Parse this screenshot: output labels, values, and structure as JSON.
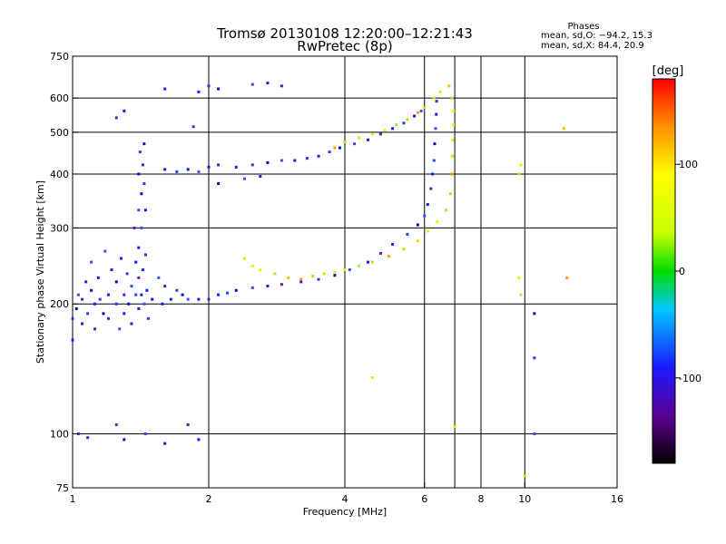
{
  "chart_data": {
    "type": "scatter",
    "title": "Tromsø 20130108 12:20:00–12:21:43",
    "subtitle": "RwPretec (8p)",
    "xlabel": "Frequency [MHz]",
    "ylabel": "Stationary phase Virtual Height [km]",
    "x_scale": "log",
    "y_scale": "log",
    "xlim": [
      1,
      16
    ],
    "ylim": [
      75,
      750
    ],
    "xticks": [
      1,
      2,
      4,
      6,
      8,
      10,
      16
    ],
    "xtick_labels": [
      "1",
      "2",
      "4",
      "6",
      "8",
      "10",
      "16"
    ],
    "yticks": [
      75,
      100,
      200,
      300,
      400,
      500,
      600,
      750
    ],
    "ytick_labels": [
      "75",
      "100",
      "200",
      "300",
      "400",
      "500",
      "600",
      "750"
    ],
    "x_gridlines": [
      2,
      4,
      6,
      7,
      8,
      10,
      16
    ],
    "y_gridlines": [
      100,
      200,
      300,
      400,
      500,
      600,
      750
    ],
    "grid": true,
    "stats": {
      "heading": "Phases",
      "line_o": "mean, sd,O: −94.2, 15.3",
      "line_x": "mean, sd,X:  84.4, 20.9"
    },
    "colorbar": {
      "label": "[deg]",
      "range": [
        -180,
        180
      ],
      "ticks": [
        100,
        0,
        -100
      ],
      "tick_labels": [
        "100",
        "0",
        "-100"
      ]
    },
    "series": [
      {
        "mode": "O",
        "points": [
          [
            1.0,
            165
          ],
          [
            1.0,
            185
          ],
          [
            1.02,
            195
          ],
          [
            1.03,
            210
          ],
          [
            1.05,
            180
          ],
          [
            1.05,
            205
          ],
          [
            1.07,
            225
          ],
          [
            1.08,
            190
          ],
          [
            1.1,
            215
          ],
          [
            1.1,
            250
          ],
          [
            1.12,
            200
          ],
          [
            1.12,
            175
          ],
          [
            1.14,
            230
          ],
          [
            1.15,
            205
          ],
          [
            1.17,
            190
          ],
          [
            1.18,
            265
          ],
          [
            1.2,
            210
          ],
          [
            1.2,
            185
          ],
          [
            1.22,
            240
          ],
          [
            1.25,
            200
          ],
          [
            1.25,
            225
          ],
          [
            1.27,
            175
          ],
          [
            1.28,
            255
          ],
          [
            1.3,
            210
          ],
          [
            1.3,
            190
          ],
          [
            1.32,
            235
          ],
          [
            1.33,
            200
          ],
          [
            1.35,
            220
          ],
          [
            1.35,
            180
          ],
          [
            1.37,
            300
          ],
          [
            1.38,
            250
          ],
          [
            1.38,
            210
          ],
          [
            1.4,
            400
          ],
          [
            1.4,
            330
          ],
          [
            1.4,
            270
          ],
          [
            1.4,
            230
          ],
          [
            1.4,
            195
          ],
          [
            1.41,
            450
          ],
          [
            1.42,
            360
          ],
          [
            1.42,
            300
          ],
          [
            1.42,
            210
          ],
          [
            1.43,
            420
          ],
          [
            1.43,
            240
          ],
          [
            1.44,
            380
          ],
          [
            1.44,
            470
          ],
          [
            1.44,
            200
          ],
          [
            1.45,
            330
          ],
          [
            1.45,
            260
          ],
          [
            1.46,
            215
          ],
          [
            1.47,
            185
          ],
          [
            1.5,
            205
          ],
          [
            1.55,
            230
          ],
          [
            1.58,
            200
          ],
          [
            1.6,
            220
          ],
          [
            1.65,
            205
          ],
          [
            1.7,
            215
          ],
          [
            1.75,
            210
          ],
          [
            1.8,
            205
          ],
          [
            1.9,
            205
          ],
          [
            2.0,
            205
          ],
          [
            2.1,
            210
          ],
          [
            2.2,
            212
          ],
          [
            2.3,
            215
          ],
          [
            2.5,
            218
          ],
          [
            2.7,
            220
          ],
          [
            2.9,
            222
          ],
          [
            3.2,
            225
          ],
          [
            3.5,
            228
          ],
          [
            3.8,
            233
          ],
          [
            4.1,
            240
          ],
          [
            4.5,
            250
          ],
          [
            4.8,
            262
          ],
          [
            5.1,
            275
          ],
          [
            5.5,
            290
          ],
          [
            5.8,
            305
          ],
          [
            6.0,
            320
          ],
          [
            6.1,
            340
          ],
          [
            6.2,
            370
          ],
          [
            6.25,
            400
          ],
          [
            6.3,
            430
          ],
          [
            6.32,
            470
          ],
          [
            6.35,
            510
          ],
          [
            6.37,
            550
          ],
          [
            6.38,
            590
          ],
          [
            1.6,
            410
          ],
          [
            1.7,
            405
          ],
          [
            1.8,
            410
          ],
          [
            1.9,
            405
          ],
          [
            2.0,
            415
          ],
          [
            2.1,
            420
          ],
          [
            2.3,
            415
          ],
          [
            2.5,
            420
          ],
          [
            2.7,
            425
          ],
          [
            2.9,
            430
          ],
          [
            3.1,
            430
          ],
          [
            3.3,
            435
          ],
          [
            3.5,
            440
          ],
          [
            3.7,
            450
          ],
          [
            3.9,
            460
          ],
          [
            4.2,
            470
          ],
          [
            4.5,
            480
          ],
          [
            4.8,
            495
          ],
          [
            5.1,
            510
          ],
          [
            5.4,
            525
          ],
          [
            5.7,
            545
          ],
          [
            5.9,
            560
          ],
          [
            1.3,
            560
          ],
          [
            1.25,
            540
          ],
          [
            1.9,
            620
          ],
          [
            2.0,
            640
          ],
          [
            2.1,
            630
          ],
          [
            2.5,
            645
          ],
          [
            2.7,
            650
          ],
          [
            2.9,
            640
          ],
          [
            1.6,
            630
          ],
          [
            1.85,
            515
          ],
          [
            2.1,
            380
          ],
          [
            2.4,
            390
          ],
          [
            2.6,
            395
          ],
          [
            1.03,
            100
          ],
          [
            1.08,
            98
          ],
          [
            1.25,
            105
          ],
          [
            1.3,
            97
          ],
          [
            1.45,
            100
          ],
          [
            1.6,
            95
          ],
          [
            1.8,
            105
          ],
          [
            1.9,
            97
          ],
          [
            10.5,
            150
          ],
          [
            10.5,
            190
          ],
          [
            10.5,
            100
          ]
        ]
      },
      {
        "mode": "X",
        "points": [
          [
            2.4,
            255
          ],
          [
            2.5,
            245
          ],
          [
            2.6,
            240
          ],
          [
            2.8,
            235
          ],
          [
            3.0,
            230
          ],
          [
            3.2,
            228
          ],
          [
            3.4,
            232
          ],
          [
            3.6,
            235
          ],
          [
            3.8,
            237
          ],
          [
            4.0,
            240
          ],
          [
            4.3,
            245
          ],
          [
            4.6,
            250
          ],
          [
            5.0,
            258
          ],
          [
            5.4,
            268
          ],
          [
            5.8,
            280
          ],
          [
            6.1,
            295
          ],
          [
            6.4,
            310
          ],
          [
            6.7,
            330
          ],
          [
            6.85,
            360
          ],
          [
            6.9,
            400
          ],
          [
            6.92,
            440
          ],
          [
            6.93,
            480
          ],
          [
            6.95,
            520
          ],
          [
            6.95,
            560
          ],
          [
            6.9,
            600
          ],
          [
            6.8,
            640
          ],
          [
            3.8,
            460
          ],
          [
            4.0,
            475
          ],
          [
            4.3,
            485
          ],
          [
            4.6,
            495
          ],
          [
            4.9,
            505
          ],
          [
            5.2,
            520
          ],
          [
            5.5,
            535
          ],
          [
            5.8,
            555
          ],
          [
            6.0,
            570
          ],
          [
            6.3,
            600
          ],
          [
            6.5,
            620
          ],
          [
            9.8,
            420
          ],
          [
            9.7,
            400
          ],
          [
            12.2,
            510
          ],
          [
            12.4,
            230
          ],
          [
            10.0,
            80
          ],
          [
            7.0,
            104
          ],
          [
            4.6,
            135
          ],
          [
            9.7,
            230
          ],
          [
            9.8,
            210
          ]
        ]
      }
    ]
  }
}
